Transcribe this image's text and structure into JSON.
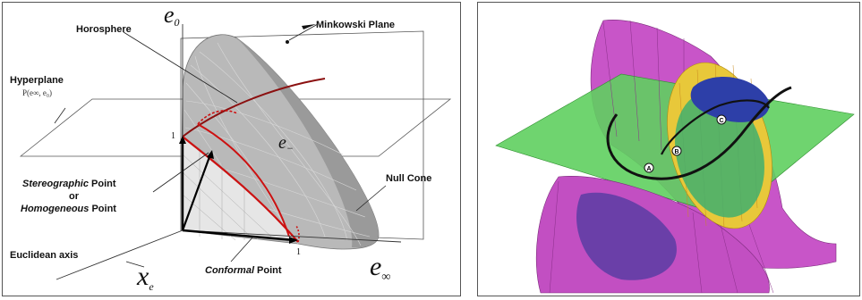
{
  "left": {
    "labels": {
      "horosphere": "Horosphere",
      "minkowski_plane": "Minkowski Plane",
      "hyperplane": "Hyperplane",
      "hyperplane_formula": "P(e∞, e₀)",
      "null_cone": "Null Cone",
      "stereo_line1_it": "Stereographic",
      "stereo_line1_rest": " Point",
      "stereo_line2": "or",
      "stereo_line3_it": "Homogeneous",
      "stereo_line3_rest": " Point",
      "euclidean_axis": "Euclidean axis",
      "conformal_it": "Conformal",
      "conformal_rest": " Point",
      "e0_base": "e",
      "e0_sub": "0",
      "einf_base": "e",
      "einf_sub": "∞",
      "xe_base": "x",
      "xe_sub": "e",
      "eminus_base": "e",
      "eminus_sub": "−",
      "one_vertical": "1",
      "one_horizontal": "1"
    },
    "colors": {
      "cone": "#b9b9b9",
      "cone_dark": "#8f8f8f",
      "horosphere": "#cc1111",
      "plane": "#444444"
    }
  },
  "right": {
    "points": [
      "A",
      "B",
      "C"
    ],
    "colors": {
      "hyperboloid": "#cc44cc",
      "plane": "#44cc44",
      "ellipsoid": "#e8c83a",
      "sphere": "#3344aa",
      "curve": "#111111"
    }
  }
}
